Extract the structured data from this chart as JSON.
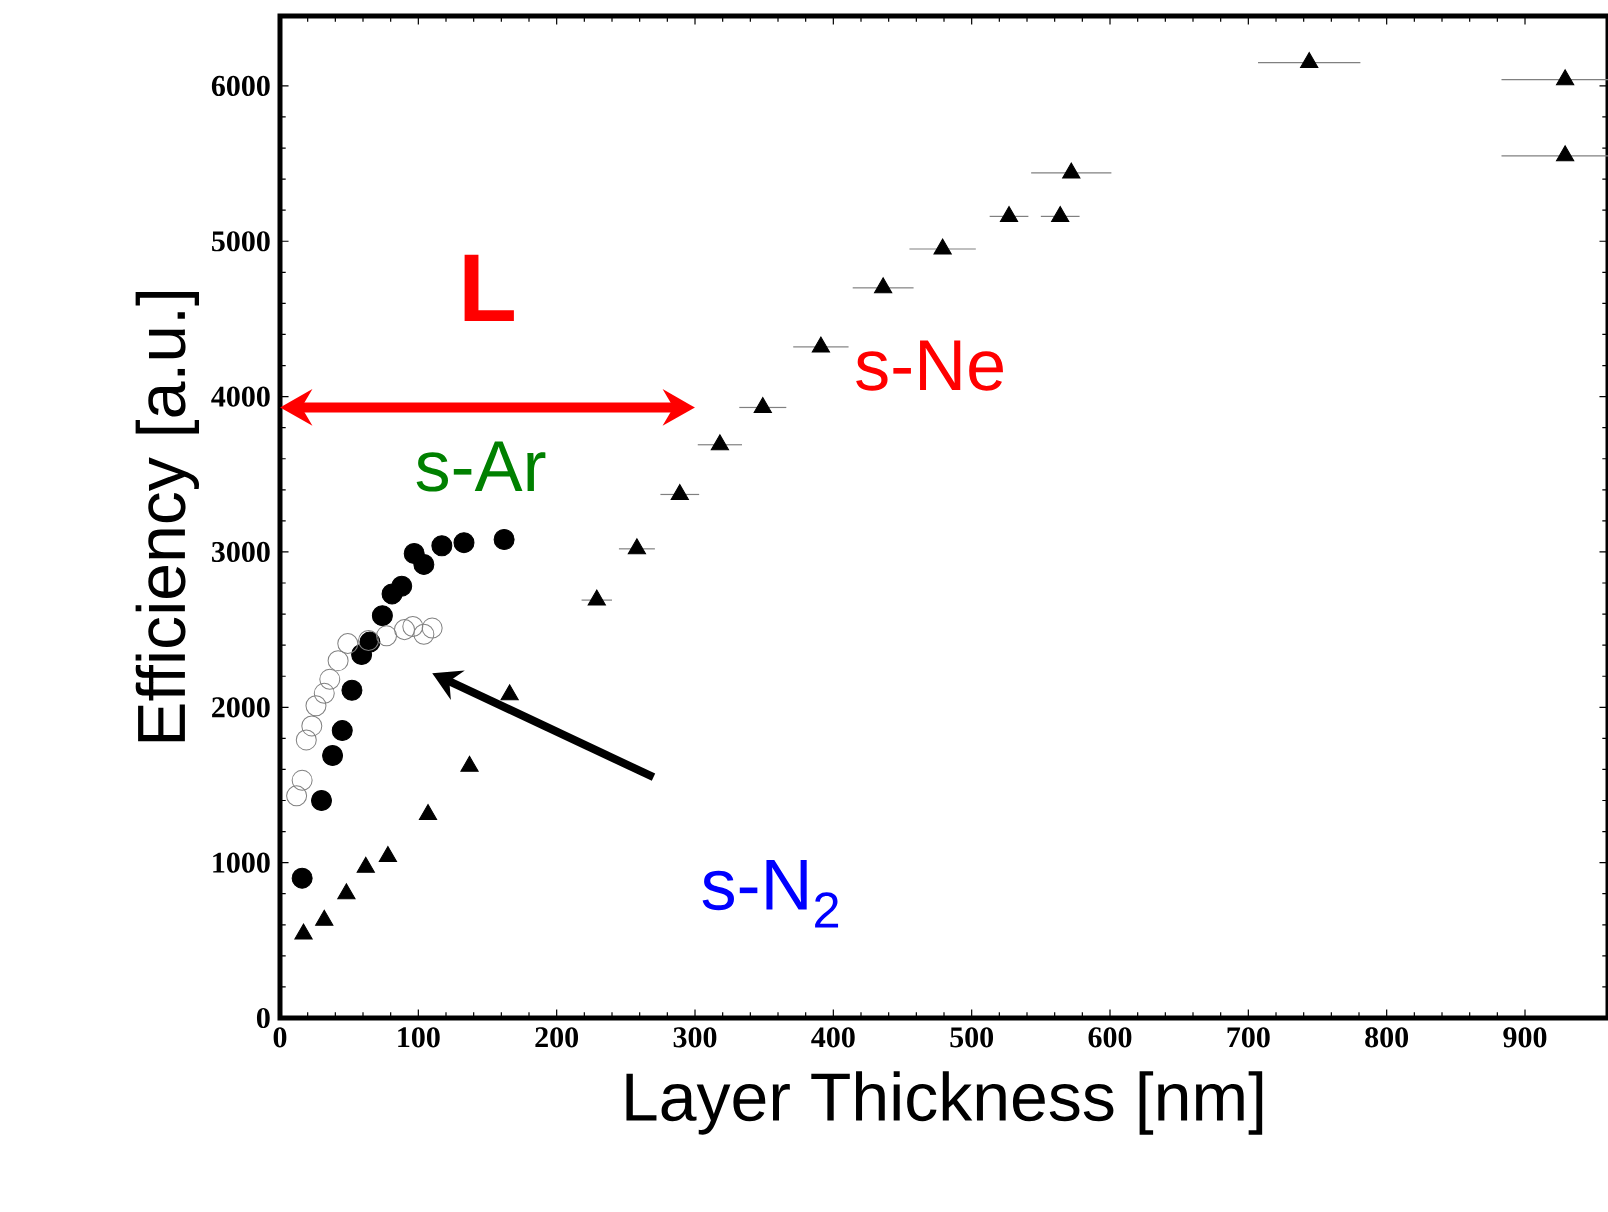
{
  "chart_data": {
    "type": "scatter",
    "xlabel": "Layer Thickness [nm]",
    "ylabel": "Efficiency  [a.u.]",
    "xlim": [
      0,
      960
    ],
    "ylim": [
      0,
      6450
    ],
    "xticks": [
      0,
      100,
      200,
      300,
      400,
      500,
      600,
      700,
      800,
      900
    ],
    "yticks": [
      0,
      1000,
      2000,
      3000,
      4000,
      5000,
      6000
    ],
    "grid": false,
    "series": [
      {
        "name": "s-Ne",
        "color": "#000000",
        "marker": "triangle",
        "x": [
          17,
          32,
          48,
          62,
          78,
          107,
          137,
          166,
          229,
          258,
          289,
          318,
          349,
          391,
          436,
          479,
          527,
          564,
          572,
          744,
          929,
          929
        ],
        "values": [
          540,
          630,
          800,
          970,
          1040,
          1310,
          1620,
          2080,
          2690,
          3020,
          3370,
          3690,
          3930,
          4320,
          4700,
          4950,
          5160,
          5160,
          5440,
          6150,
          6040,
          5550
        ],
        "xerrors": [
          null,
          null,
          null,
          null,
          null,
          null,
          null,
          null,
          11,
          13,
          14,
          16,
          17,
          20,
          22,
          24,
          14,
          14,
          29,
          37,
          46,
          46
        ]
      },
      {
        "name": "s-Ar",
        "color": "#000000",
        "marker": "circle",
        "x": [
          16,
          30,
          38,
          45,
          52,
          59,
          65,
          74,
          81,
          88,
          97,
          104,
          117,
          133,
          162
        ],
        "values": [
          900,
          1400,
          1690,
          1850,
          2110,
          2340,
          2420,
          2590,
          2730,
          2780,
          2990,
          2920,
          3040,
          3060,
          3080
        ]
      },
      {
        "color": "#808080",
        "marker": "circle",
        "x": [
          12,
          16,
          19,
          23,
          26,
          32,
          36,
          42,
          49,
          64,
          77,
          90,
          96,
          104,
          110
        ],
        "values": [
          1430,
          1530,
          1790,
          1880,
          2010,
          2090,
          2180,
          2300,
          2410,
          2430,
          2460,
          2500,
          2520,
          2470,
          2510
        ]
      }
    ],
    "annotations": [
      "L",
      "s-N$_{2}$"
    ]
  }
}
